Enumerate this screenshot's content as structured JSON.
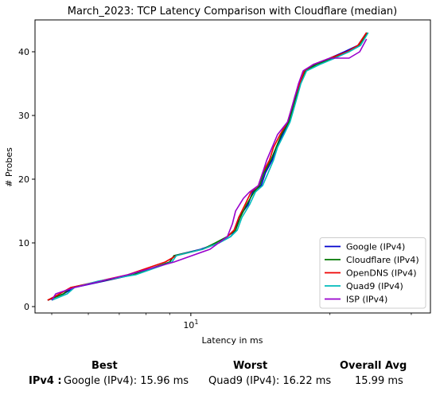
{
  "chart_data": {
    "type": "line",
    "title": "March_2023: TCP Latency Comparison with Cloudflare (median)",
    "xlabel": "Latency in ms",
    "ylabel": "# Probes",
    "xscale": "log",
    "xlim": [
      4.6,
      33
    ],
    "ylim": [
      -1,
      45
    ],
    "x_ticks": [
      {
        "value": 10,
        "label": "10^1"
      }
    ],
    "y_ticks": [
      0,
      10,
      20,
      30,
      40
    ],
    "grid": false,
    "legend": "bottom-right",
    "series": [
      {
        "name": "Google (IPv4)",
        "color": "#0000cc",
        "points": [
          [
            4.9,
            1
          ],
          [
            5.3,
            2
          ],
          [
            5.6,
            3
          ],
          [
            7.5,
            5
          ],
          [
            9.0,
            7
          ],
          [
            9.2,
            8
          ],
          [
            10.5,
            9
          ],
          [
            11.5,
            10
          ],
          [
            12.2,
            11
          ],
          [
            12.5,
            12
          ],
          [
            12.7,
            14
          ],
          [
            13.3,
            16
          ],
          [
            13.6,
            18
          ],
          [
            14.2,
            19
          ],
          [
            14.5,
            21
          ],
          [
            15.0,
            23
          ],
          [
            15.3,
            25
          ],
          [
            15.8,
            27
          ],
          [
            16.3,
            29
          ],
          [
            16.6,
            31
          ],
          [
            16.9,
            33
          ],
          [
            17.2,
            35
          ],
          [
            17.6,
            37
          ],
          [
            18.5,
            38
          ],
          [
            20.0,
            39
          ],
          [
            21.5,
            40
          ],
          [
            23.0,
            41
          ],
          [
            24.0,
            43
          ]
        ]
      },
      {
        "name": "Cloudflare (IPv4)",
        "color": "#007700",
        "points": [
          [
            4.9,
            1
          ],
          [
            5.3,
            2
          ],
          [
            5.5,
            3
          ],
          [
            7.5,
            5
          ],
          [
            9.0,
            7
          ],
          [
            9.2,
            8
          ],
          [
            10.6,
            9
          ],
          [
            11.3,
            10
          ],
          [
            12.0,
            11
          ],
          [
            12.5,
            12
          ],
          [
            12.8,
            14
          ],
          [
            13.2,
            16
          ],
          [
            13.7,
            18
          ],
          [
            14.1,
            19
          ],
          [
            14.4,
            21
          ],
          [
            14.9,
            23
          ],
          [
            15.3,
            25
          ],
          [
            15.7,
            27
          ],
          [
            16.3,
            29
          ],
          [
            16.6,
            31
          ],
          [
            16.9,
            33
          ],
          [
            17.2,
            35
          ],
          [
            17.7,
            37
          ],
          [
            18.7,
            38
          ],
          [
            20.3,
            39
          ],
          [
            22.0,
            40
          ],
          [
            23.1,
            41
          ],
          [
            24.1,
            43
          ]
        ]
      },
      {
        "name": "OpenDNS (IPv4)",
        "color": "#ee0000",
        "points": [
          [
            4.9,
            1
          ],
          [
            5.2,
            2
          ],
          [
            5.5,
            3
          ],
          [
            7.3,
            5
          ],
          [
            8.8,
            7
          ],
          [
            9.3,
            8
          ],
          [
            10.6,
            9
          ],
          [
            11.5,
            10
          ],
          [
            12.0,
            11
          ],
          [
            12.4,
            12
          ],
          [
            12.7,
            14
          ],
          [
            13.1,
            16
          ],
          [
            13.5,
            18
          ],
          [
            14.0,
            19
          ],
          [
            14.3,
            21
          ],
          [
            14.8,
            23
          ],
          [
            15.1,
            25
          ],
          [
            15.6,
            27
          ],
          [
            16.2,
            29
          ],
          [
            16.5,
            31
          ],
          [
            16.8,
            33
          ],
          [
            17.2,
            35
          ],
          [
            17.6,
            37
          ],
          [
            18.4,
            38
          ],
          [
            20.0,
            39
          ],
          [
            21.8,
            40
          ],
          [
            23.0,
            41
          ],
          [
            24.0,
            43
          ]
        ]
      },
      {
        "name": "Quad9 (IPv4)",
        "color": "#00bbbb",
        "points": [
          [
            5.0,
            1
          ],
          [
            5.4,
            2
          ],
          [
            5.6,
            3
          ],
          [
            6.3,
            4
          ],
          [
            7.6,
            5
          ],
          [
            9.1,
            7
          ],
          [
            9.3,
            8
          ],
          [
            10.6,
            9
          ],
          [
            11.5,
            10
          ],
          [
            12.2,
            11
          ],
          [
            12.6,
            12
          ],
          [
            12.9,
            14
          ],
          [
            13.4,
            16
          ],
          [
            13.8,
            18
          ],
          [
            14.3,
            19
          ],
          [
            14.7,
            21
          ],
          [
            15.1,
            23
          ],
          [
            15.4,
            25
          ],
          [
            15.9,
            27
          ],
          [
            16.4,
            29
          ],
          [
            16.7,
            31
          ],
          [
            17.0,
            33
          ],
          [
            17.3,
            35
          ],
          [
            17.8,
            37
          ],
          [
            19.0,
            38
          ],
          [
            20.5,
            39
          ],
          [
            22.0,
            40
          ],
          [
            23.3,
            41
          ],
          [
            24.2,
            43
          ]
        ]
      },
      {
        "name": "ISP (IPv4)",
        "color": "#9900cc",
        "points": [
          [
            5.0,
            1
          ],
          [
            5.1,
            2
          ],
          [
            5.6,
            3
          ],
          [
            7.3,
            5
          ],
          [
            9.2,
            7
          ],
          [
            11.0,
            9
          ],
          [
            12.0,
            11
          ],
          [
            12.3,
            13
          ],
          [
            12.5,
            15
          ],
          [
            13.0,
            17
          ],
          [
            13.4,
            18
          ],
          [
            14.0,
            19
          ],
          [
            14.3,
            21
          ],
          [
            14.6,
            23
          ],
          [
            15.0,
            25
          ],
          [
            15.4,
            27
          ],
          [
            16.2,
            29
          ],
          [
            16.5,
            31
          ],
          [
            16.8,
            33
          ],
          [
            17.1,
            35
          ],
          [
            17.5,
            37
          ],
          [
            18.4,
            38
          ],
          [
            20.0,
            39
          ],
          [
            22.0,
            39
          ],
          [
            23.2,
            40
          ],
          [
            24.0,
            42
          ]
        ]
      }
    ]
  },
  "summary": {
    "best_header": "Best",
    "worst_header": "Worst",
    "avg_header": "Overall Avg",
    "row_label": "IPv4 :",
    "best_value": "Google (IPv4): 15.96 ms",
    "worst_value": "Quad9 (IPv4): 16.22 ms",
    "avg_value": "15.99 ms"
  }
}
